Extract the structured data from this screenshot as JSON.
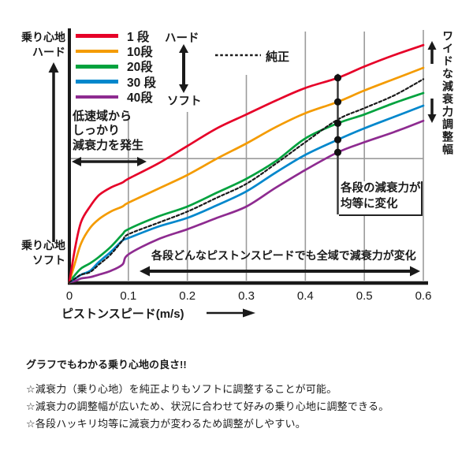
{
  "labels": {
    "y_top": [
      "乗り心地",
      "ハード"
    ],
    "y_bottom": [
      "乗り心地",
      "ソフト"
    ],
    "legend_hard": "ハード",
    "legend_soft": "ソフト",
    "low_speed_note": [
      "低速域から",
      "しっかり",
      "減衰力を発生"
    ],
    "marker_note": [
      "各段の減衰力が",
      "均等に変化"
    ],
    "range_note": "各段どんなピストンスピードでも全域で減衰力が変化",
    "wide_range": "ワイドな減衰力調整幅",
    "x_title": "ピストンスピード(m/s)"
  },
  "chart_data": {
    "type": "line",
    "title": "",
    "xlabel": "ピストンスピード(m/s)",
    "y_axis_qualitative": {
      "top": "乗り心地ハード",
      "bottom": "乗り心地ソフト"
    },
    "grid": true,
    "legend_position": "top-left",
    "xlim": [
      0,
      0.6
    ],
    "ylim_relative_pct": [
      0,
      100
    ],
    "x_tick_values": [
      0,
      0.1,
      0.2,
      0.3,
      0.4,
      0.5,
      0.6
    ],
    "x_tick_labels": [
      "0",
      "0.1",
      "0.2",
      "0.3",
      "0.4",
      "0.5",
      "0.6"
    ],
    "x_values": [
      0,
      0.01,
      0.02,
      0.035,
      0.05,
      0.07,
      0.09,
      0.1,
      0.15,
      0.2,
      0.25,
      0.3,
      0.35,
      0.4,
      0.455,
      0.5,
      0.55,
      0.6
    ],
    "marker_x": 0.455,
    "series": [
      {
        "name": "1 段",
        "color": "#e60028",
        "dashed": false,
        "values": [
          0,
          14,
          24,
          30,
          34.5,
          37.5,
          39.5,
          41,
          47,
          54,
          61,
          66.5,
          72,
          77,
          81,
          85.5,
          90,
          94
        ]
      },
      {
        "name": "10段",
        "color": "#f49b00",
        "dashed": false,
        "values": [
          0,
          8,
          15.5,
          21.5,
          25,
          28,
          30,
          31.5,
          37,
          42.5,
          49,
          55,
          61.5,
          67,
          71.5,
          76,
          80.5,
          85
        ]
      },
      {
        "name": "20段",
        "color": "#00a23e",
        "dashed": false,
        "values": [
          0,
          3,
          5.5,
          7.5,
          10,
          14,
          19,
          21,
          26,
          30,
          35.5,
          41,
          48,
          57,
          63,
          66.5,
          71,
          75
        ]
      },
      {
        "name": "30 段",
        "color": "#0087cc",
        "dashed": false,
        "values": [
          0,
          1.5,
          3,
          4.5,
          8,
          12,
          16.5,
          17.5,
          22,
          25.5,
          30.5,
          36,
          43.5,
          50.5,
          56.5,
          61,
          65.5,
          70
        ]
      },
      {
        "name": "40段",
        "color": "#8e2b90",
        "dashed": false,
        "values": [
          0,
          0.5,
          1.5,
          2,
          3,
          4.5,
          7,
          11,
          17,
          21,
          25.5,
          30,
          37.5,
          44.5,
          51.5,
          55.5,
          59.5,
          64
        ]
      },
      {
        "name": "純正",
        "color": "#1a1a1a",
        "dashed": true,
        "values": [
          0,
          1.5,
          3,
          4,
          7,
          11,
          16.5,
          19,
          23.5,
          28,
          33.5,
          39,
          47,
          55.5,
          64.5,
          69,
          74,
          80.5
        ]
      }
    ]
  },
  "footer": {
    "title": "グラフでもわかる乗り心地の良さ!!",
    "points": [
      "☆減衰力（乗り心地）を純正よりもソフトに調整することが可能。",
      "☆減衰力の調整幅が広いため、状況に合わせて好みの乗り心地に調整できる。",
      "☆各段ハッキリ均等に減衰力が変わるため調整がしやすい。"
    ]
  }
}
